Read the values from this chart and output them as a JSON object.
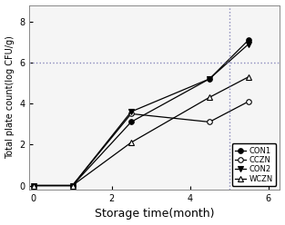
{
  "series": {
    "CON1": {
      "x": [
        0,
        1,
        2.5,
        4.5,
        5.5
      ],
      "y": [
        0,
        0,
        3.1,
        5.2,
        7.1
      ],
      "marker": "o",
      "markerfacecolor": "black",
      "markeredgecolor": "black",
      "linestyle": "-",
      "color": "black"
    },
    "CCZN": {
      "x": [
        0,
        1,
        2.5,
        4.5,
        5.5
      ],
      "y": [
        0,
        0,
        3.5,
        3.1,
        4.1
      ],
      "marker": "o",
      "markerfacecolor": "white",
      "markeredgecolor": "black",
      "linestyle": "-",
      "color": "black"
    },
    "CON2": {
      "x": [
        0,
        1,
        2.5,
        4.5,
        5.5
      ],
      "y": [
        0,
        0,
        3.6,
        5.2,
        6.9
      ],
      "marker": "v",
      "markerfacecolor": "black",
      "markeredgecolor": "black",
      "linestyle": "-",
      "color": "black"
    },
    "WCZN": {
      "x": [
        0,
        1,
        2.5,
        4.5,
        5.5
      ],
      "y": [
        0,
        0,
        2.1,
        4.3,
        5.3
      ],
      "marker": "^",
      "markerfacecolor": "white",
      "markeredgecolor": "black",
      "linestyle": "-",
      "color": "black"
    }
  },
  "hline": {
    "y": 6.0,
    "color": "#8888bb",
    "linestyle": ":",
    "linewidth": 1.0
  },
  "vline": {
    "x": 5.0,
    "color": "#8888bb",
    "linestyle": ":",
    "linewidth": 1.0
  },
  "xlabel": "Storage time(month)",
  "ylabel": "Total plate count(log CFU/g)",
  "xlim": [
    -0.1,
    6.3
  ],
  "ylim": [
    -0.2,
    8.8
  ],
  "xticks": [
    0,
    2,
    4,
    6
  ],
  "yticks": [
    0,
    2,
    4,
    6,
    8
  ],
  "legend_order": [
    "CON1",
    "CCZN",
    "CON2",
    "WCZN"
  ],
  "legend_loc": "lower right",
  "figsize": [
    3.13,
    2.48
  ],
  "dpi": 100,
  "markersize": 4,
  "linewidth": 0.9,
  "xlabel_fontsize": 9,
  "ylabel_fontsize": 7,
  "tick_fontsize": 7,
  "legend_fontsize": 6
}
